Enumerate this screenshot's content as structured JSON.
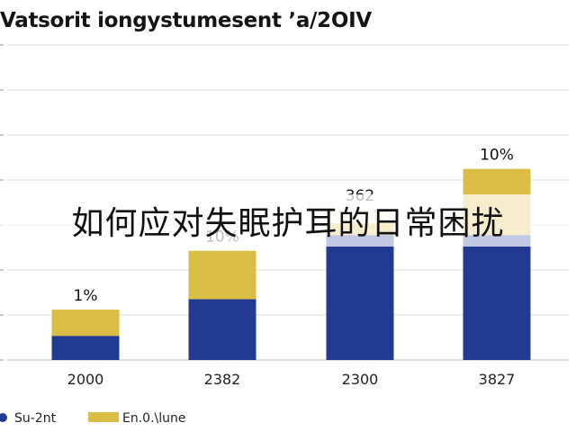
{
  "chart_data": {
    "type": "bar",
    "stacked": true,
    "title": "Vatsorit iongystumesent ʼa/2OIV",
    "categories": [
      "2000",
      "2382",
      "2300",
      "3827"
    ],
    "series": [
      {
        "name": "Su-2nt",
        "color": "#233a93",
        "values": [
          23,
          58,
          119,
          119
        ]
      },
      {
        "name": "En.0.\\lune",
        "color": "#d9bd44",
        "values": [
          25,
          46,
          11,
          63
        ]
      }
    ],
    "whitecap_values": [
      0,
      0,
      13,
      0
    ],
    "data_labels": [
      "1%",
      "10%",
      "362",
      "10%"
    ],
    "ylim": [
      0,
      300
    ],
    "grid": true,
    "legend_position": "bottom-left"
  },
  "overlay_text": "如何应对失眠护耳的日常困扰",
  "colors": {
    "gridline": "#dcdcdc",
    "axis": "#bbbbbb",
    "whitecap": "#f3efd6"
  }
}
